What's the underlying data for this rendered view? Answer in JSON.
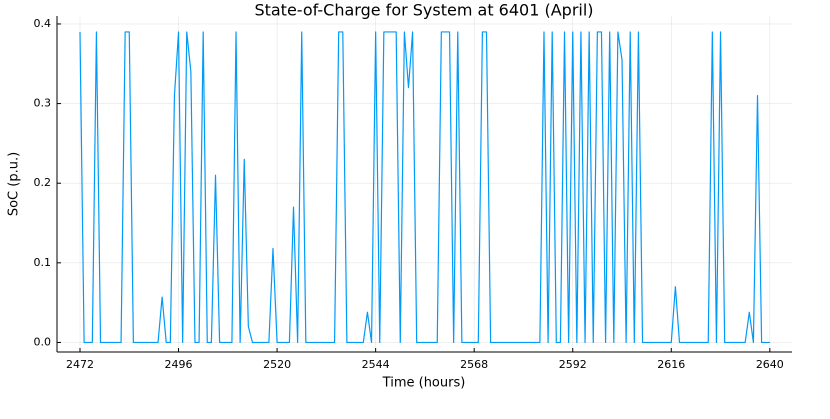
{
  "chart_data": {
    "type": "line",
    "title": "State-of-Charge for System at 6401 (April)",
    "x_label": "Time (hours)",
    "y_label": "SoC (p.u.)",
    "x": [
      2472,
      2473,
      2475,
      2476,
      2477,
      2482,
      2483,
      2484,
      2485,
      2491,
      2492,
      2493,
      2494,
      2495,
      2496,
      2497,
      2498,
      2499,
      2500,
      2501,
      2502,
      2503,
      2504,
      2505,
      2506,
      2509,
      2510,
      2511,
      2512,
      2513,
      2514,
      2518,
      2519,
      2520,
      2523,
      2524,
      2525,
      2526,
      2527,
      2534,
      2535,
      2536,
      2537,
      2541,
      2542,
      2543,
      2544,
      2545,
      2546,
      2549,
      2550,
      2551,
      2552,
      2553,
      2554,
      2559,
      2560,
      2562,
      2563,
      2564,
      2565,
      2569,
      2570,
      2571,
      2572,
      2584,
      2585,
      2586,
      2587,
      2588,
      2589,
      2590,
      2591,
      2592,
      2593,
      2594,
      2595,
      2596,
      2597,
      2598,
      2599,
      2600,
      2601,
      2602,
      2603,
      2604,
      2605,
      2606,
      2607,
      2608,
      2609,
      2616,
      2617,
      2618,
      2625,
      2626,
      2627,
      2628,
      2629,
      2634,
      2635,
      2636,
      2637,
      2638,
      2640
    ],
    "series": [
      {
        "color": "#009af9",
        "values": [
          0.39,
          0,
          0,
          0.39,
          0,
          0,
          0.39,
          0.39,
          0,
          0,
          0.057,
          0,
          0,
          0.31,
          0.39,
          0,
          0.39,
          0.34,
          0,
          0,
          0.39,
          0,
          0,
          0.21,
          0,
          0,
          0.39,
          0,
          0.23,
          0.02,
          0,
          0,
          0.118,
          0,
          0,
          0.17,
          0,
          0.39,
          0,
          0,
          0.39,
          0.39,
          0,
          0,
          0.038,
          0,
          0.39,
          0,
          0.39,
          0.39,
          0,
          0.39,
          0.32,
          0.39,
          0,
          0,
          0.39,
          0.39,
          0,
          0.39,
          0,
          0,
          0.39,
          0.39,
          0,
          0,
          0.39,
          0,
          0.39,
          0,
          0,
          0.39,
          0,
          0.39,
          0,
          0.39,
          0,
          0.39,
          0,
          0.39,
          0.39,
          0,
          0.39,
          0,
          0.39,
          0.355,
          0,
          0.39,
          0,
          0.39,
          0,
          0,
          0.07,
          0,
          0,
          0.39,
          0,
          0.39,
          0,
          0,
          0.038,
          0,
          0.31,
          0,
          0
        ]
      }
    ],
    "xlim": [
      2466.4,
      2645.4
    ],
    "xticks": [
      2472,
      2496,
      2520,
      2544,
      2568,
      2592,
      2616,
      2640
    ],
    "ylim": [
      -0.012,
      0.41
    ],
    "yticks": [
      {
        "value": 0,
        "label": "0.0"
      },
      0.1,
      0.2,
      0.3,
      0.4
    ],
    "grid": true
  }
}
